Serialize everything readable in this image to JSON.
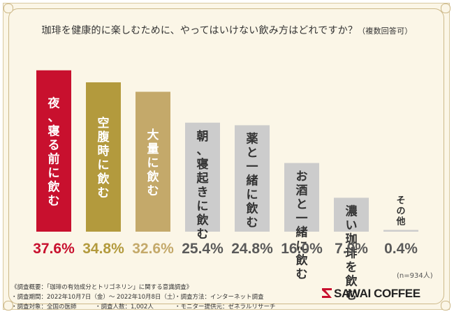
{
  "title": {
    "main": "珈琲を健康的に楽しむために、やってはいけない飲み方はどれですか？",
    "sub": "（複数回答可）"
  },
  "chart_data": {
    "type": "bar",
    "title": "珈琲を健康的に楽しむために、やってはいけない飲み方はどれですか？（複数回答可）",
    "categories": [
      "夜、寝る前に飲む",
      "空腹時に飲む",
      "大量に飲む",
      "朝、寝起きに飲む",
      "薬と一緒に飲む",
      "お酒と一緒に飲む",
      "濃い珈琲を飲む",
      "その他"
    ],
    "values": [
      37.6,
      34.8,
      32.6,
      25.4,
      24.8,
      16.0,
      7.9,
      0.4
    ],
    "value_labels": [
      "37.6%",
      "34.8%",
      "32.6%",
      "25.4%",
      "24.8%",
      "16.0%",
      "7.9%",
      "0.4%"
    ],
    "unit": "%",
    "ylim": [
      0,
      40
    ],
    "colors": [
      "#c8102e",
      "#b39a3d",
      "#c4a96a",
      "#cccccc",
      "#cccccc",
      "#cccccc",
      "#cccccc",
      "#cccccc"
    ],
    "value_colors": [
      "#c8102e",
      "#b39a3d",
      "#c4a96a",
      "#5a5a5a",
      "#5a5a5a",
      "#5a5a5a",
      "#5a5a5a",
      "#5a5a5a"
    ],
    "xlabel": "",
    "ylabel": "",
    "grid": false
  },
  "sample_note": "(n=934人)",
  "footer": {
    "survey_outline": "《調査概要：「珈琲の有効成分とトリゴネリン」に関する意識調査》",
    "period": "・調査期間：2022年10月7日（金）～ 2022年10月8日（土）",
    "target": "・調査対象：全国の医師",
    "count": "・調査人数：1,002人",
    "method": "・調査方法：インターネット調査",
    "provider": "・モニター提供元：ゼネラルリサーチ"
  },
  "brand": {
    "name": "SAWAI COFFEE",
    "color": "#c8102e"
  }
}
